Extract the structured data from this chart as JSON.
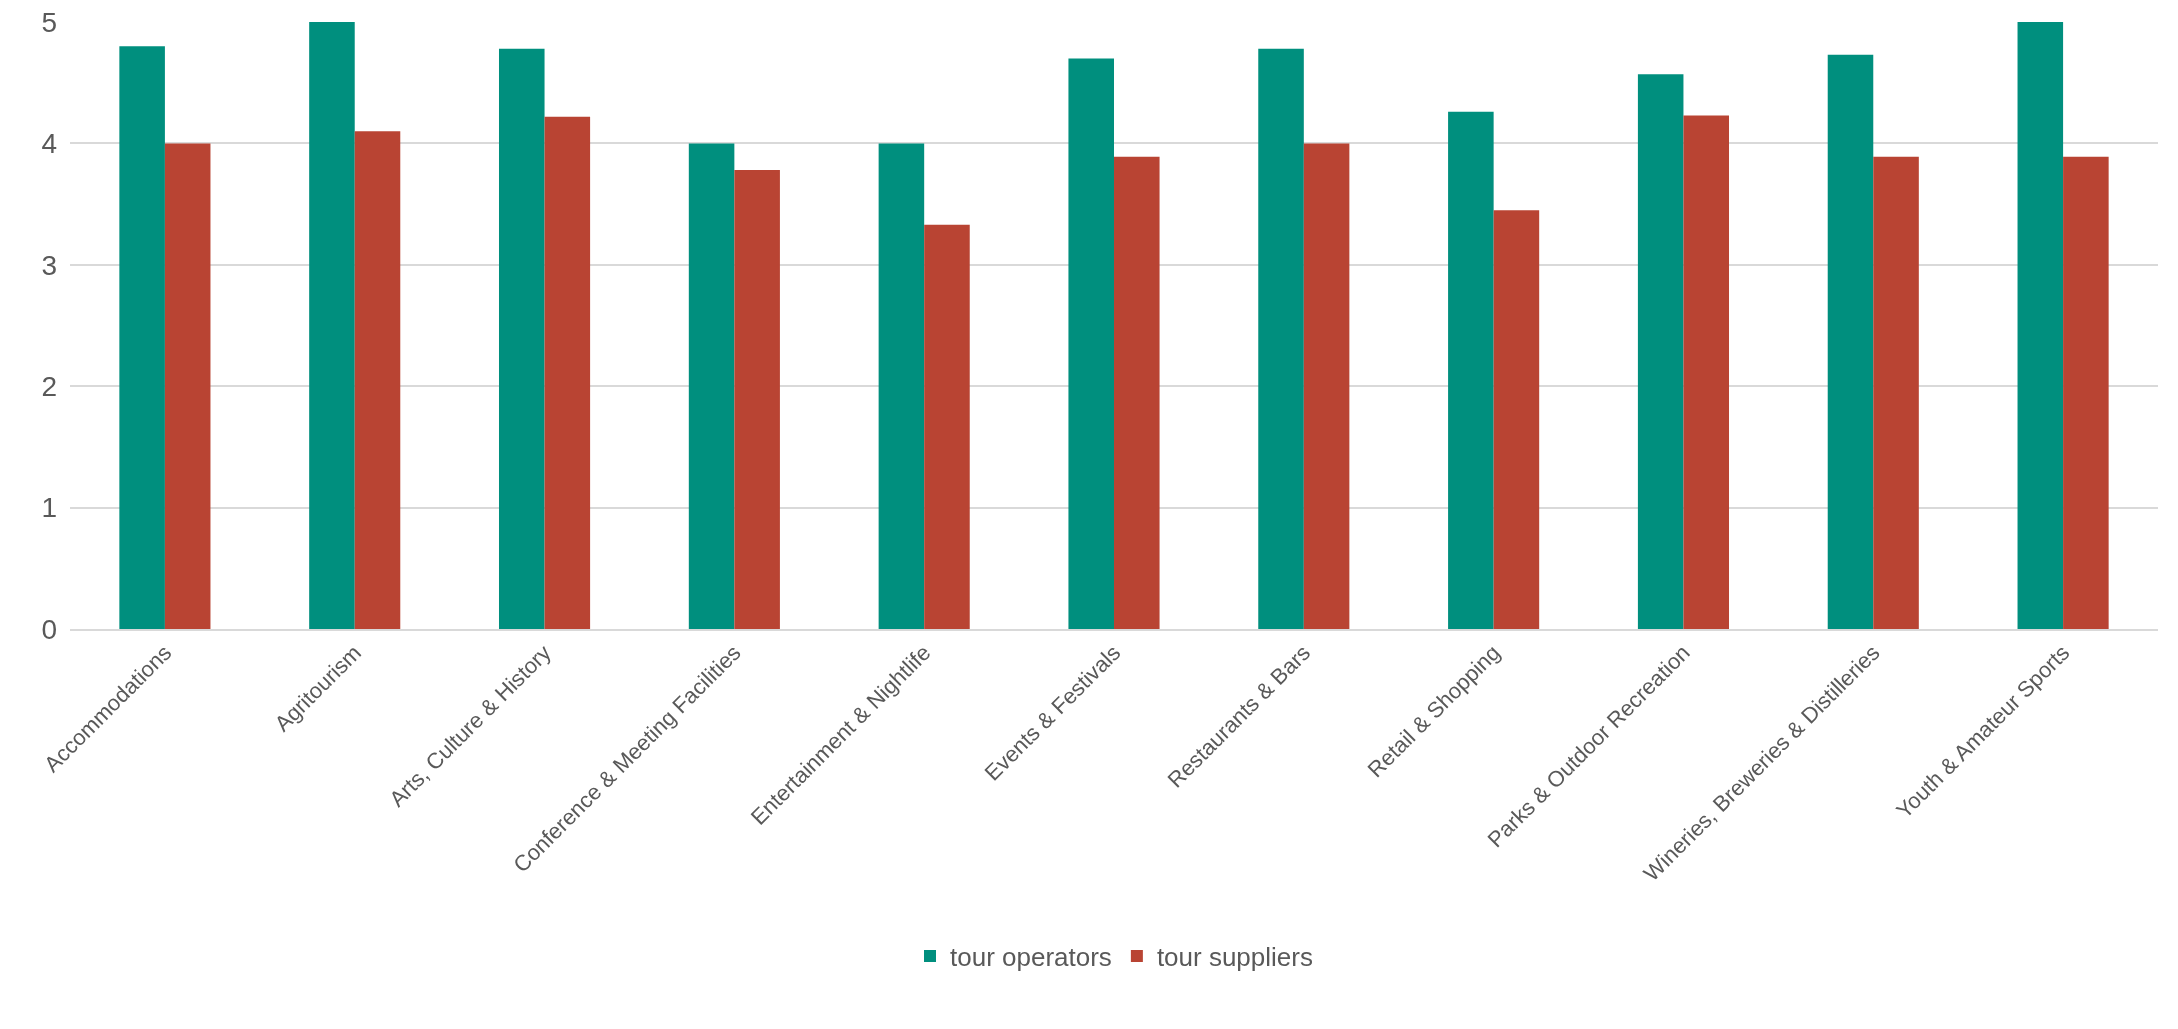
{
  "chart_data": {
    "type": "bar",
    "categories": [
      "Accommodations",
      "Agritourism",
      "Arts, Culture & History",
      "Conference & Meeting Facilities",
      "Entertainment & Nightlife",
      "Events & Festivals",
      "Restaurants & Bars",
      "Retail & Shopping",
      "Parks & Outdoor Recreation",
      "Wineries, Breweries & Distilleries",
      "Youth & Amateur Sports"
    ],
    "series": [
      {
        "name": "tour operators",
        "color": "#008f7e",
        "values": [
          4.8,
          5.0,
          4.78,
          4.0,
          4.0,
          4.7,
          4.78,
          4.26,
          4.57,
          4.73,
          5.0
        ]
      },
      {
        "name": "tour suppliers",
        "color": "#b94433",
        "values": [
          4.0,
          4.1,
          4.22,
          3.78,
          3.33,
          3.89,
          4.0,
          3.45,
          4.23,
          3.89,
          3.89
        ]
      }
    ],
    "ylim": [
      0,
      5
    ],
    "yticks": [
      0,
      1,
      2,
      3,
      4,
      5
    ],
    "grid": "y",
    "legend": "bottom"
  }
}
